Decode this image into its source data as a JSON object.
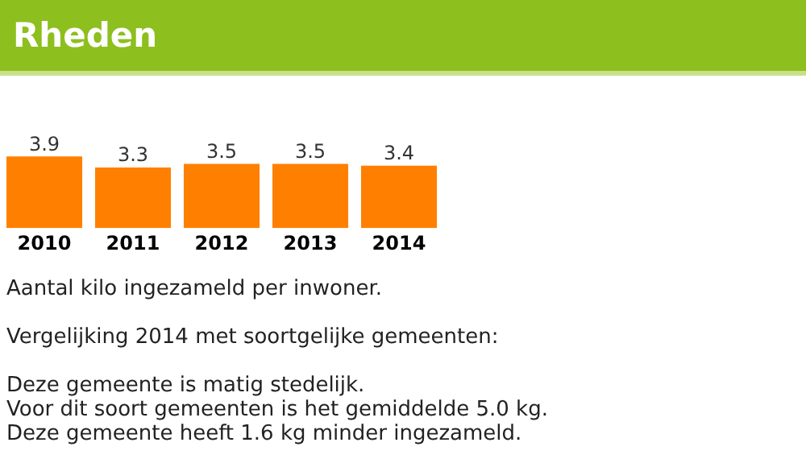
{
  "chart_data": {
    "type": "bar",
    "title": "Rheden",
    "categories": [
      "2010",
      "2011",
      "2012",
      "2013",
      "2014"
    ],
    "values": [
      3.9,
      3.3,
      3.5,
      3.5,
      3.4
    ],
    "color": "#ff8000",
    "data_labels": true,
    "grid": false,
    "legend": false,
    "tick_labels": "x",
    "annotations": [
      "Aantal kilo ingezameld per inwoner.",
      "Vergelijking 2014 met soortgelijke gemeenten:",
      "Deze gemeente is matig stedelijk.",
      "Voor dit soort gemeenten is het gemiddelde 5.0 kg.",
      "Deze gemeente heeft 1.6 kg minder ingezameld."
    ]
  }
}
